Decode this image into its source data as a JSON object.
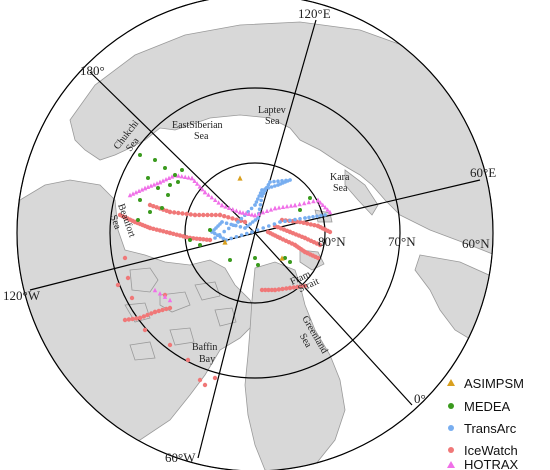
{
  "map": {
    "projection": "north-polar-stereographic",
    "colors": {
      "ocean": "#ffffff",
      "land": "#d8d8d8",
      "coast": "#9a9a9a",
      "gridline": "#000000"
    },
    "meridian_labels": [
      "120°E",
      "180°",
      "60°E",
      "120°W",
      "0°",
      "60°W"
    ],
    "parallel_labels": [
      "80°N",
      "70°N",
      "60°N"
    ],
    "sea_labels": [
      {
        "key": "chukchi",
        "lines": [
          "Chukchi",
          "Sea"
        ]
      },
      {
        "key": "east-siberian",
        "lines": [
          "EastSiberian",
          "Sea"
        ]
      },
      {
        "key": "laptev",
        "lines": [
          "Laptev",
          "Sea"
        ]
      },
      {
        "key": "kara",
        "lines": [
          "Kara",
          "Sea"
        ]
      },
      {
        "key": "beaufort",
        "lines": [
          "Beaufort",
          "Sea"
        ]
      },
      {
        "key": "fram",
        "lines": [
          "Fram",
          "Strait"
        ]
      },
      {
        "key": "greenland",
        "lines": [
          "Greenland",
          "Sea"
        ]
      },
      {
        "key": "baffin",
        "lines": [
          "Baffin",
          "Bay"
        ]
      }
    ]
  },
  "legend": {
    "items": [
      {
        "label": "ASIMPSM",
        "color": "#d9a01e",
        "marker": "triangle"
      },
      {
        "label": "MEDEA",
        "color": "#3a9a1e",
        "marker": "circle"
      },
      {
        "label": "TransArc",
        "color": "#78aef0",
        "marker": "circle"
      },
      {
        "label": "IceWatch",
        "color": "#f07878",
        "marker": "circle"
      },
      {
        "label": "HOTRAX",
        "color": "#f070e8",
        "marker": "triangle"
      }
    ]
  }
}
